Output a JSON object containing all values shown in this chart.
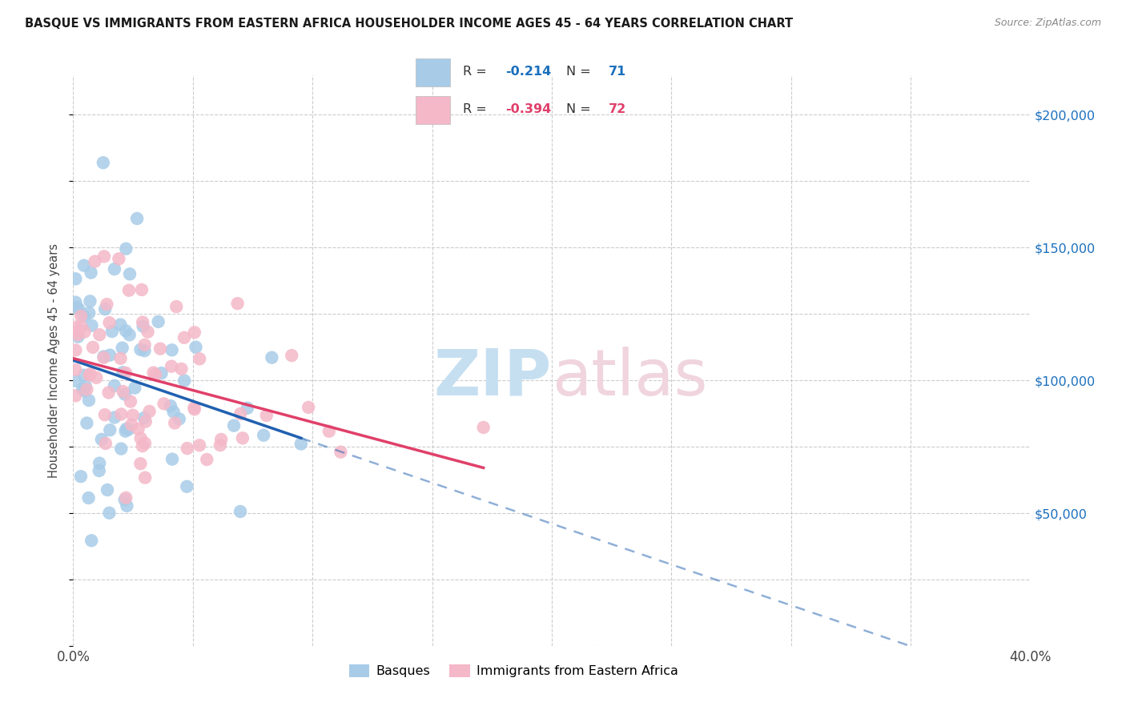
{
  "title": "BASQUE VS IMMIGRANTS FROM EASTERN AFRICA HOUSEHOLDER INCOME AGES 45 - 64 YEARS CORRELATION CHART",
  "source": "Source: ZipAtlas.com",
  "ylabel": "Householder Income Ages 45 - 64 years",
  "right_yticks": [
    "$200,000",
    "$150,000",
    "$100,000",
    "$50,000"
  ],
  "right_ytick_vals": [
    200000,
    150000,
    100000,
    50000
  ],
  "legend1_r": "-0.214",
  "legend1_n": "71",
  "legend2_r": "-0.394",
  "legend2_n": "72",
  "blue_color": "#a8cce8",
  "pink_color": "#f4b8c8",
  "blue_line_color": "#2060b0",
  "pink_line_color": "#e0406a",
  "xlim": [
    0,
    40
  ],
  "ylim": [
    0,
    215000
  ],
  "blue_scatter_seed": 12,
  "pink_scatter_seed": 34
}
